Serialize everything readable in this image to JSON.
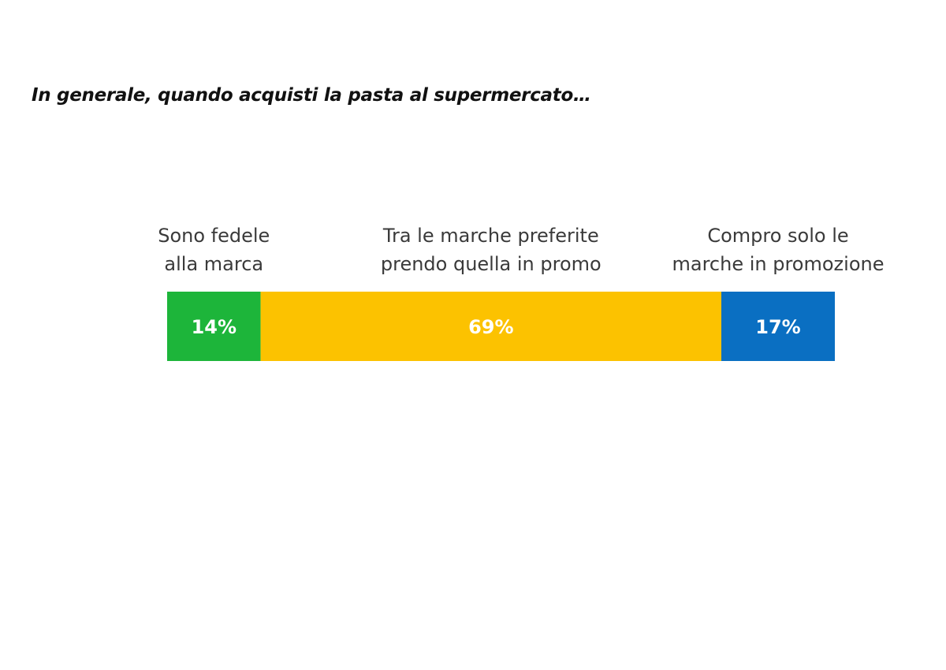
{
  "title": "In generale, quando acquisti la pasta al supermercato…",
  "chart_data": {
    "type": "bar",
    "orientation": "horizontal-stacked-100",
    "title": "In generale, quando acquisti la pasta al supermercato…",
    "xlabel": "",
    "ylabel": "",
    "xlim": [
      0,
      100
    ],
    "grid": false,
    "legend": "none",
    "series": [
      {
        "value": 14,
        "value_label": "14%",
        "label_lines": [
          "Sono fedele",
          "alla marca"
        ],
        "color": "#1db53a"
      },
      {
        "value": 69,
        "value_label": "69%",
        "label_lines": [
          "Tra le marche preferite",
          "prendo quella in promo"
        ],
        "color": "#fcc200"
      },
      {
        "value": 17,
        "value_label": "17%",
        "label_lines": [
          "Compro solo le",
          "marche in promozione"
        ],
        "color": "#0a6fc2"
      }
    ]
  }
}
